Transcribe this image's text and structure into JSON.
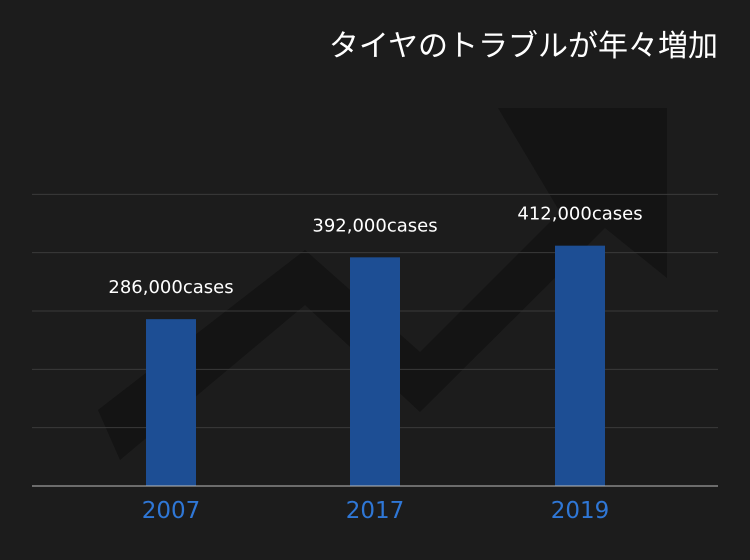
{
  "chart_data": {
    "type": "bar",
    "title": "タイヤのトラブルが年々増加",
    "categories": [
      "2007",
      "2017",
      "2019"
    ],
    "values": [
      286000,
      392000,
      412000
    ],
    "data_labels": [
      "286,000cases",
      "392,000cases",
      "412,000cases"
    ],
    "ylim": [
      0,
      500000
    ],
    "y_grid_step": 100000,
    "grid": true,
    "legend": "none",
    "xlabel": "",
    "ylabel": ""
  },
  "colors": {
    "background": "#1c1c1c",
    "bar": "#1d4e94",
    "tick_label": "#2f77d6",
    "gridline": "#3a3a3a",
    "axis": "#bdbdbd",
    "arrow_watermark": "#111111"
  },
  "decorations": {
    "background_arrow": "upward-trend-arrow-icon"
  }
}
